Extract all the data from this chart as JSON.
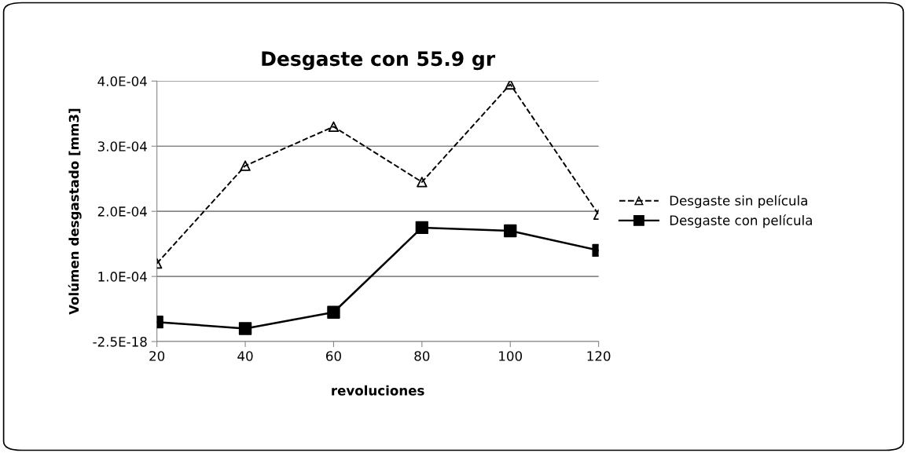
{
  "chart_data": {
    "type": "line",
    "title": "Desgaste con 55.9 gr",
    "xlabel": "revoluciones",
    "ylabel": "Volúmen desgastado [mm3]",
    "categories": [
      "20",
      "40",
      "60",
      "80",
      "100",
      "120"
    ],
    "series": [
      {
        "name": "Desgaste sin película",
        "color": "#000000",
        "marker": "triangle",
        "line_style": "dashed",
        "values": [
          0.00012,
          0.00027,
          0.00033,
          0.000245,
          0.000395,
          0.000195
        ]
      },
      {
        "name": "Desgaste con película",
        "color": "#000000",
        "marker": "square",
        "line_style": "solid",
        "values": [
          3e-05,
          2e-05,
          4.5e-05,
          0.000175,
          0.00017,
          0.00014
        ]
      }
    ],
    "ylim": [
      -2.5e-18,
      0.0004
    ],
    "yticks": [
      {
        "value": -2.5e-18,
        "label": "-2.5E-18"
      },
      {
        "value": 0.0001,
        "label": "1.0E-04"
      },
      {
        "value": 0.0002,
        "label": "2.0E-04"
      },
      {
        "value": 0.0003,
        "label": "3.0E-04"
      },
      {
        "value": 0.0004,
        "label": "4.0E-04"
      }
    ],
    "grid": "y",
    "legend": "right"
  }
}
